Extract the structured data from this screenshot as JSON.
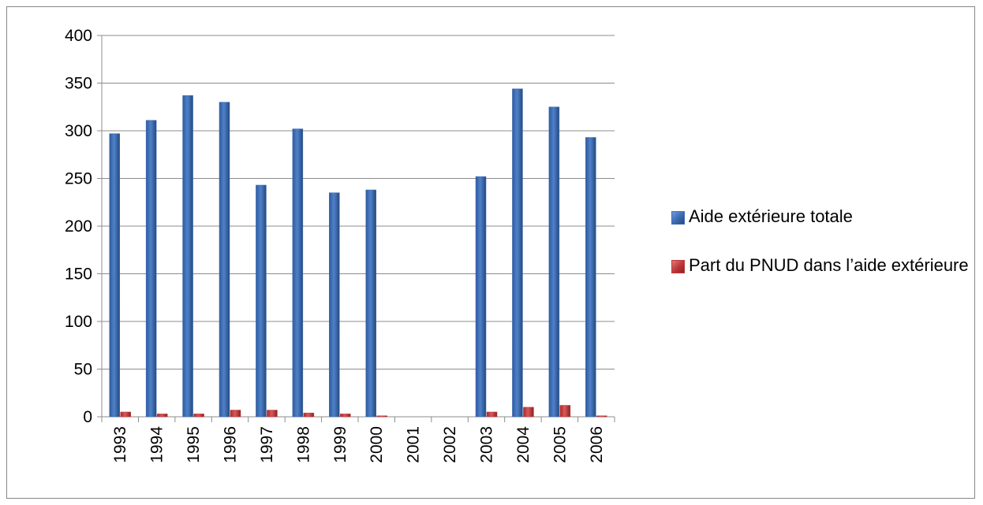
{
  "chart_data": {
    "type": "bar",
    "title": "",
    "xlabel": "",
    "ylabel": "",
    "ylim": [
      0,
      400
    ],
    "yticks": [
      0,
      50,
      100,
      150,
      200,
      250,
      300,
      350,
      400
    ],
    "categories": [
      "1993",
      "1994",
      "1995",
      "1996",
      "1997",
      "1998",
      "1999",
      "2000",
      "2001",
      "2002",
      "2003",
      "2004",
      "2005",
      "2006"
    ],
    "series": [
      {
        "name": "Aide extérieure totale",
        "color": "#3E6DB5",
        "values": [
          297,
          311,
          337,
          330,
          243,
          302,
          235,
          238,
          0,
          0,
          252,
          344,
          325,
          293
        ]
      },
      {
        "name": "Part du PNUD dans l’aide extérieure",
        "color": "#C0393B",
        "values": [
          5,
          3,
          3,
          7,
          7,
          4,
          3,
          1,
          0,
          0,
          5,
          10,
          12,
          1
        ]
      }
    ],
    "grid": true,
    "legend_position": "right"
  }
}
